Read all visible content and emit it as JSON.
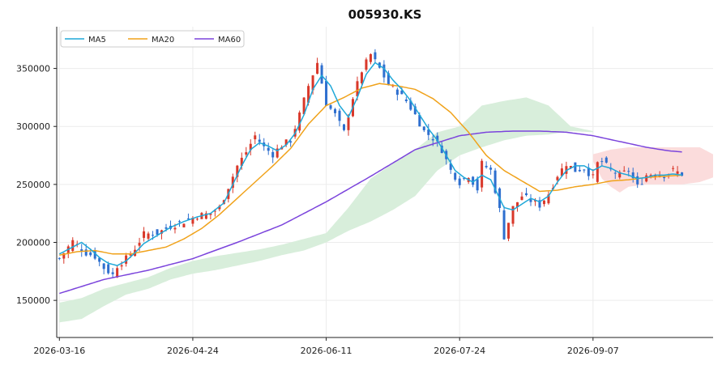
{
  "chart_data": {
    "type": "line",
    "subtype": "candlestick with moving averages and ichimoku cloud",
    "title": "005930.KS",
    "xlabel": "",
    "ylabel": "",
    "ylim": [
      118000,
      386000
    ],
    "y_ticks": [
      150000,
      200000,
      250000,
      300000,
      350000
    ],
    "y_tick_labels": [
      "150000",
      "200000",
      "250000",
      "300000",
      "350000"
    ],
    "x_ticks": [
      {
        "index": 0,
        "label": "2026-03-16"
      },
      {
        "index": 30,
        "label": "2026-04-24"
      },
      {
        "index": 60,
        "label": "2026-06-11"
      },
      {
        "index": 90,
        "label": "2026-07-24"
      },
      {
        "index": 120,
        "label": "2026-09-07"
      }
    ],
    "x_range": [
      -0.6,
      147
    ],
    "grid": true,
    "legend_position": "top-left",
    "legend": [
      {
        "name": "MA5",
        "color": "#1fa8d8"
      },
      {
        "name": "MA20",
        "color": "#f0a21a"
      },
      {
        "name": "MA60",
        "color": "#7b44dc"
      }
    ],
    "colors": {
      "up": "#d9382a",
      "down": "#2e6fcf",
      "cloud_bull": "#d8eedb",
      "cloud_bear": "#fbdcdc"
    },
    "anchors": {
      "close": [
        [
          0,
          186000
        ],
        [
          3,
          201000
        ],
        [
          6,
          191000
        ],
        [
          8,
          188000
        ],
        [
          10,
          178000
        ],
        [
          12,
          172000
        ],
        [
          13,
          180000
        ],
        [
          15,
          186000
        ],
        [
          17,
          195000
        ],
        [
          19,
          207000
        ],
        [
          22,
          208000
        ],
        [
          25,
          214000
        ],
        [
          28,
          218000
        ],
        [
          31,
          223000
        ],
        [
          34,
          225000
        ],
        [
          36,
          230000
        ],
        [
          38,
          248000
        ],
        [
          40,
          266000
        ],
        [
          42,
          278000
        ],
        [
          44,
          292000
        ],
        [
          46,
          282000
        ],
        [
          48,
          276000
        ],
        [
          50,
          284000
        ],
        [
          52,
          288000
        ],
        [
          54,
          310000
        ],
        [
          56,
          335000
        ],
        [
          58,
          355000
        ],
        [
          60,
          320000
        ],
        [
          62,
          310000
        ],
        [
          64,
          295000
        ],
        [
          66,
          325000
        ],
        [
          68,
          348000
        ],
        [
          70,
          362000
        ],
        [
          72,
          350000
        ],
        [
          74,
          336000
        ],
        [
          76,
          330000
        ],
        [
          78,
          322000
        ],
        [
          80,
          310000
        ],
        [
          82,
          296000
        ],
        [
          84,
          290000
        ],
        [
          86,
          280000
        ],
        [
          88,
          262000
        ],
        [
          90,
          252000
        ],
        [
          92,
          258000
        ],
        [
          94,
          246000
        ],
        [
          95,
          268000
        ],
        [
          97,
          262000
        ],
        [
          99,
          228000
        ],
        [
          100,
          205000
        ],
        [
          102,
          230000
        ],
        [
          104,
          240000
        ],
        [
          106,
          236000
        ],
        [
          108,
          232000
        ],
        [
          110,
          242000
        ],
        [
          112,
          258000
        ],
        [
          114,
          268000
        ],
        [
          116,
          262000
        ],
        [
          118,
          264000
        ],
        [
          120,
          256000
        ],
        [
          121,
          268000
        ],
        [
          122,
          270000
        ],
        [
          124,
          262000
        ],
        [
          126,
          258000
        ],
        [
          128,
          262000
        ],
        [
          130,
          248000
        ],
        [
          132,
          258000
        ],
        [
          134,
          260000
        ],
        [
          136,
          258000
        ],
        [
          138,
          262000
        ],
        [
          140,
          259000
        ]
      ],
      "ma5": [
        [
          0,
          190000
        ],
        [
          3,
          196000
        ],
        [
          5,
          200000
        ],
        [
          7,
          194000
        ],
        [
          9,
          187000
        ],
        [
          11,
          182000
        ],
        [
          13,
          180000
        ],
        [
          15,
          184000
        ],
        [
          17,
          191000
        ],
        [
          19,
          199000
        ],
        [
          22,
          206000
        ],
        [
          25,
          213000
        ],
        [
          28,
          218000
        ],
        [
          31,
          222000
        ],
        [
          34,
          225000
        ],
        [
          37,
          234000
        ],
        [
          39,
          250000
        ],
        [
          41,
          266000
        ],
        [
          43,
          280000
        ],
        [
          45,
          286000
        ],
        [
          47,
          283000
        ],
        [
          49,
          279000
        ],
        [
          51,
          284000
        ],
        [
          53,
          294000
        ],
        [
          55,
          310000
        ],
        [
          57,
          332000
        ],
        [
          59,
          344000
        ],
        [
          61,
          335000
        ],
        [
          63,
          318000
        ],
        [
          65,
          308000
        ],
        [
          67,
          325000
        ],
        [
          69,
          345000
        ],
        [
          71,
          355000
        ],
        [
          73,
          350000
        ],
        [
          75,
          340000
        ],
        [
          77,
          332000
        ],
        [
          79,
          322000
        ],
        [
          81,
          310000
        ],
        [
          83,
          298000
        ],
        [
          85,
          288000
        ],
        [
          87,
          275000
        ],
        [
          89,
          262000
        ],
        [
          91,
          256000
        ],
        [
          93,
          252000
        ],
        [
          95,
          258000
        ],
        [
          97,
          254000
        ],
        [
          99,
          238000
        ],
        [
          100,
          230000
        ],
        [
          102,
          228000
        ],
        [
          104,
          233000
        ],
        [
          106,
          238000
        ],
        [
          108,
          235000
        ],
        [
          110,
          240000
        ],
        [
          112,
          252000
        ],
        [
          114,
          262000
        ],
        [
          116,
          266000
        ],
        [
          118,
          266000
        ],
        [
          120,
          262000
        ],
        [
          122,
          266000
        ],
        [
          124,
          264000
        ],
        [
          126,
          260000
        ],
        [
          128,
          258000
        ],
        [
          130,
          255000
        ],
        [
          132,
          256000
        ],
        [
          134,
          258000
        ],
        [
          136,
          258000
        ],
        [
          138,
          259000
        ],
        [
          140,
          258000
        ]
      ],
      "ma20": [
        [
          0,
          189000
        ],
        [
          4,
          192000
        ],
        [
          8,
          193000
        ],
        [
          12,
          190000
        ],
        [
          16,
          190000
        ],
        [
          20,
          193000
        ],
        [
          24,
          196000
        ],
        [
          28,
          203000
        ],
        [
          32,
          212000
        ],
        [
          36,
          224000
        ],
        [
          40,
          238000
        ],
        [
          44,
          252000
        ],
        [
          48,
          266000
        ],
        [
          52,
          281000
        ],
        [
          56,
          302000
        ],
        [
          60,
          318000
        ],
        [
          64,
          325000
        ],
        [
          68,
          333000
        ],
        [
          72,
          337000
        ],
        [
          76,
          335000
        ],
        [
          80,
          332000
        ],
        [
          84,
          324000
        ],
        [
          88,
          312000
        ],
        [
          92,
          295000
        ],
        [
          96,
          275000
        ],
        [
          100,
          262000
        ],
        [
          104,
          253000
        ],
        [
          108,
          244000
        ],
        [
          112,
          245000
        ],
        [
          116,
          248000
        ],
        [
          120,
          250000
        ],
        [
          124,
          253000
        ],
        [
          128,
          254000
        ],
        [
          132,
          256000
        ],
        [
          136,
          257000
        ],
        [
          140,
          258000
        ]
      ],
      "ma60": [
        [
          0,
          156000
        ],
        [
          10,
          168000
        ],
        [
          20,
          176000
        ],
        [
          30,
          186000
        ],
        [
          40,
          200000
        ],
        [
          50,
          215000
        ],
        [
          60,
          235000
        ],
        [
          70,
          257000
        ],
        [
          80,
          280000
        ],
        [
          90,
          292000
        ],
        [
          96,
          295000
        ],
        [
          102,
          296000
        ],
        [
          108,
          296000
        ],
        [
          114,
          295000
        ],
        [
          120,
          292000
        ],
        [
          126,
          287000
        ],
        [
          132,
          282000
        ],
        [
          137,
          279000
        ],
        [
          140,
          278000
        ]
      ],
      "cloud_a": [
        [
          0,
          148000
        ],
        [
          5,
          152000
        ],
        [
          10,
          160000
        ],
        [
          15,
          165000
        ],
        [
          20,
          170000
        ],
        [
          25,
          178000
        ],
        [
          30,
          184000
        ],
        [
          35,
          188000
        ],
        [
          40,
          191000
        ],
        [
          45,
          194000
        ],
        [
          50,
          198000
        ],
        [
          55,
          203000
        ],
        [
          60,
          208000
        ],
        [
          65,
          230000
        ],
        [
          70,
          255000
        ],
        [
          75,
          268000
        ],
        [
          80,
          280000
        ],
        [
          85,
          295000
        ],
        [
          90,
          300000
        ],
        [
          95,
          318000
        ],
        [
          100,
          322000
        ],
        [
          105,
          325000
        ],
        [
          110,
          318000
        ],
        [
          115,
          300000
        ],
        [
          120,
          296000
        ]
      ],
      "cloud_b": [
        [
          0,
          131000
        ],
        [
          5,
          134000
        ],
        [
          10,
          145000
        ],
        [
          15,
          155000
        ],
        [
          20,
          160000
        ],
        [
          25,
          168000
        ],
        [
          30,
          173000
        ],
        [
          35,
          176000
        ],
        [
          40,
          180000
        ],
        [
          45,
          184000
        ],
        [
          50,
          189000
        ],
        [
          55,
          193000
        ],
        [
          60,
          200000
        ],
        [
          65,
          210000
        ],
        [
          70,
          218000
        ],
        [
          75,
          228000
        ],
        [
          80,
          240000
        ],
        [
          85,
          262000
        ],
        [
          90,
          275000
        ],
        [
          95,
          282000
        ],
        [
          100,
          288000
        ],
        [
          105,
          292000
        ],
        [
          110,
          293000
        ],
        [
          115,
          296000
        ],
        [
          120,
          295000
        ]
      ],
      "cloud2_a": [
        [
          120,
          276000
        ],
        [
          124,
          280000
        ],
        [
          128,
          282000
        ],
        [
          132,
          282000
        ],
        [
          136,
          282000
        ],
        [
          140,
          282000
        ],
        [
          144,
          282000
        ],
        [
          147,
          276000
        ]
      ],
      "cloud2_b": [
        [
          112,
          298000
        ],
        [
          116,
          298000
        ],
        [
          118,
          288000
        ],
        [
          120,
          270000
        ],
        [
          122,
          255000
        ],
        [
          124,
          248000
        ],
        [
          126,
          243000
        ],
        [
          128,
          248000
        ],
        [
          132,
          250000
        ],
        [
          136,
          250000
        ],
        [
          140,
          250000
        ],
        [
          144,
          252000
        ],
        [
          147,
          256000
        ]
      ]
    }
  }
}
